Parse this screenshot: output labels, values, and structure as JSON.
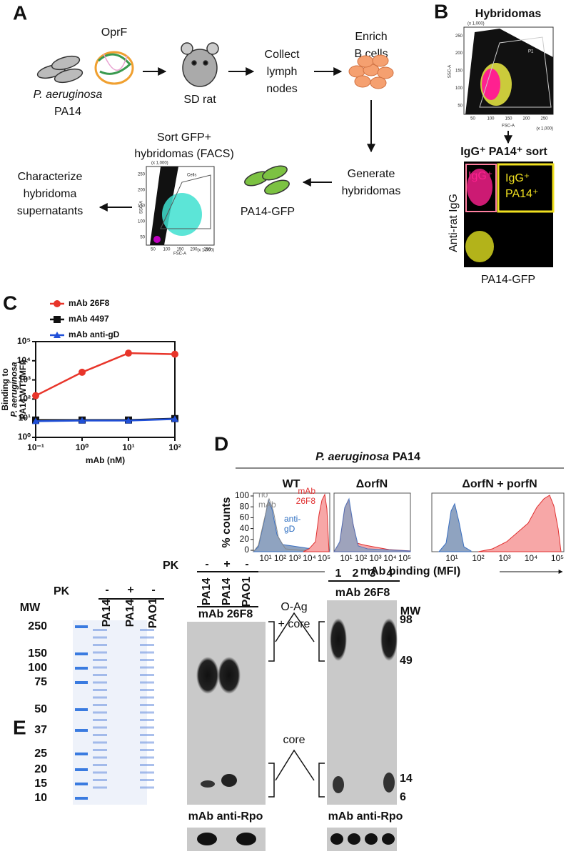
{
  "panel_a": {
    "label": "A",
    "oprf": "OprF",
    "organism": "P. aeruginosa",
    "strain": "PA14",
    "rat": "SD rat",
    "step_lymph": [
      "Collect",
      "lymph",
      "nodes"
    ],
    "step_enrich": [
      "Enrich",
      "B cells"
    ],
    "step_generate": [
      "Generate",
      "hybridomas"
    ],
    "gfp_strain": "PA14-GFP",
    "step_sort": [
      "Sort GFP+",
      "hybridomas (FACS)"
    ],
    "step_characterize": [
      "Characterize",
      "hybridoma",
      "supernatants"
    ],
    "facs": {
      "y_label": "SSC-A",
      "x_label": "FSC-A",
      "gate": "Cells",
      "scale": "(x 1,000)",
      "ticks": [
        50,
        100,
        150,
        200,
        250
      ]
    }
  },
  "panel_b": {
    "label": "B",
    "title": "Hybridomas",
    "facs": {
      "y_label": "SSC-A",
      "x_label": "FSC-A",
      "gate": "P1",
      "scale": "(x 1,000)",
      "ticks": [
        50,
        100,
        150,
        200,
        250
      ]
    },
    "sort_title": "IgG⁺ PA14⁺ sort",
    "gate_igg": "IgG⁺",
    "gate_igg_pa14": [
      "IgG⁺",
      "PA14⁺"
    ],
    "y_label": "Anti-rat IgG",
    "x_label": "PA14-GFP"
  },
  "chart_data": {
    "type": "line",
    "panel_label": "C",
    "x_label": "mAb (nM)",
    "y_label": [
      "Binding to",
      "P. aeruginosa",
      "PA14 WT (MFI)"
    ],
    "x": [
      0.1,
      1,
      10,
      100
    ],
    "xscale": "log",
    "yscale": "log",
    "xlim": [
      0.1,
      100
    ],
    "ylim": [
      1,
      100000
    ],
    "xticks": [
      {
        "value": 0.1,
        "label": "10⁻¹"
      },
      {
        "value": 1,
        "label": "10⁰"
      },
      {
        "value": 10,
        "label": "10¹"
      },
      {
        "value": 100,
        "label": "10²"
      }
    ],
    "yticks": [
      {
        "value": 1,
        "label": "10⁰"
      },
      {
        "value": 10,
        "label": "10¹"
      },
      {
        "value": 100,
        "label": "10²"
      },
      {
        "value": 1000,
        "label": "10³"
      },
      {
        "value": 10000,
        "label": "10⁴"
      },
      {
        "value": 100000,
        "label": "10⁵"
      }
    ],
    "legend": "top-left",
    "series": [
      {
        "name": "mAb 26F8",
        "color": "#e8352a",
        "marker": "circle",
        "values": [
          150,
          2500,
          25000,
          22000
        ]
      },
      {
        "name": "mAb 4497",
        "color": "#111111",
        "marker": "square",
        "values": [
          8,
          8,
          8,
          9.5
        ]
      },
      {
        "name": "mAb anti-gD",
        "color": "#2050d8",
        "marker": "triangle",
        "values": [
          7,
          7.5,
          7.5,
          9
        ]
      }
    ]
  },
  "panel_d": {
    "label": "D",
    "organism": "P. aeruginosa",
    "strain": "PA14",
    "strains": [
      "WT",
      "ΔorfN",
      "ΔorfN + porfN"
    ],
    "y_label": "% counts",
    "yticks": [
      0,
      20,
      40,
      60,
      80,
      100
    ],
    "xtick_labels": [
      "10¹",
      "10²",
      "10³",
      "10⁴",
      "10⁵"
    ],
    "no_mab": [
      "no",
      "mAb"
    ],
    "mab": [
      "mAb",
      "26F8"
    ],
    "anti_gd": [
      "anti-",
      "gD"
    ],
    "x_label": "mAb binding (MFI)"
  },
  "panel_e": {
    "label": "E",
    "pk_label": "PK",
    "pk_signs": [
      "-",
      "+",
      "-"
    ],
    "lanes": [
      "PA14",
      "PA14",
      "PAO1"
    ],
    "mw_label": "MW",
    "stain_mw": [
      250,
      150,
      100,
      75,
      50,
      37,
      25,
      20,
      15,
      10
    ],
    "antibody": "mAb 26F8",
    "loading_antibody": "mAb anti-Rpo",
    "o_ag": [
      "O-Ag",
      "+ core"
    ],
    "core": "core",
    "lane_numbers": [
      1,
      2,
      3,
      4
    ],
    "blot_mw": [
      98,
      49,
      14,
      6
    ]
  }
}
